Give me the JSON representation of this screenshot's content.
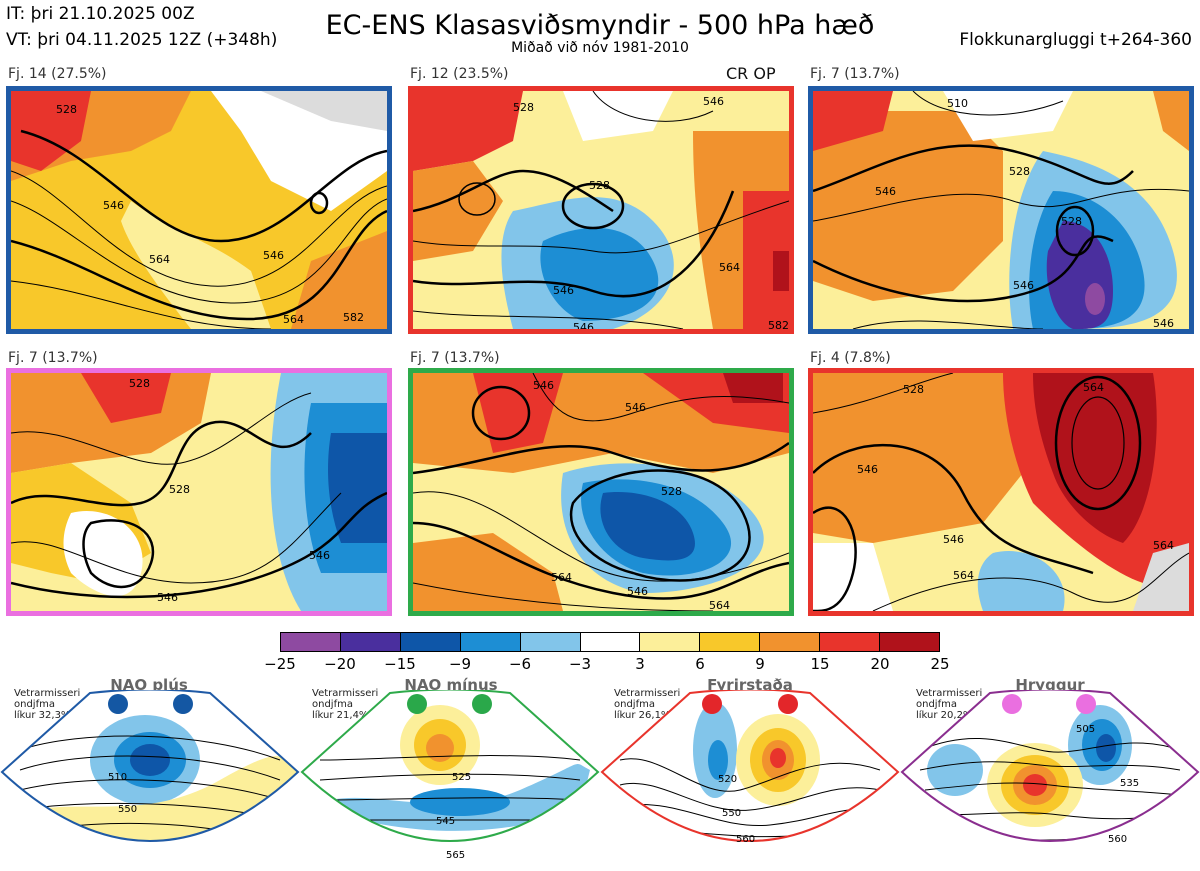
{
  "header": {
    "init_time": "IT: þri 21.10.2025 00Z",
    "valid_time": "VT: þri 04.11.2025 12Z  (+348h)",
    "title": "EC-ENS Klasasviðsmyndir - 500 hPa hæð",
    "subtitle": "Miðað við nóv 1981-2010",
    "window": "Flokkunargluggi t+264-360"
  },
  "clusters": [
    {
      "label": "Fj. 14 (27.5%)",
      "border_color": "#1f5aa6",
      "contour_labels": [
        "528",
        "546",
        "564",
        "546",
        "582",
        "564"
      ]
    },
    {
      "label": "Fj. 12 (23.5%)",
      "border_color": "#e8342c",
      "annotation": "CR OP",
      "contour_labels": [
        "528",
        "546",
        "528",
        "546",
        "564",
        "546",
        "582"
      ]
    },
    {
      "label": "Fj. 7 (13.7%)",
      "border_color": "#1f5aa6",
      "contour_labels": [
        "510",
        "528",
        "546",
        "528",
        "546",
        "546"
      ]
    },
    {
      "label": "Fj. 7 (13.7%)",
      "border_color": "#ea6fe0",
      "contour_labels": [
        "528",
        "528",
        "546",
        "546"
      ]
    },
    {
      "label": "Fj. 7 (13.7%)",
      "border_color": "#2eaa4a",
      "contour_labels": [
        "546",
        "546",
        "528",
        "564",
        "546",
        "564"
      ]
    },
    {
      "label": "Fj. 4 (7.8%)",
      "border_color": "#e8342c",
      "contour_labels": [
        "528",
        "546",
        "564",
        "546",
        "564",
        "564"
      ]
    }
  ],
  "colorbar": {
    "ticks": [
      "−25",
      "−20",
      "−15",
      "−9",
      "−6",
      "−3",
      "3",
      "6",
      "9",
      "15",
      "20",
      "25"
    ],
    "colors": [
      "#8e4aa1",
      "#4a2f9e",
      "#0e56a8",
      "#1d8ed4",
      "#82c5ea",
      "#ffffff",
      "#fcef9a",
      "#f8c82a",
      "#f1922e",
      "#e8342c",
      "#b0121b"
    ]
  },
  "regimes": [
    {
      "name": "NAO plús",
      "info": [
        "Vetrarmisseri",
        "ondjfma",
        "líkur 32,3%"
      ],
      "color": "#1f5aa6",
      "dot_color": "#1457a3",
      "contour_labels": [
        "510",
        "550"
      ]
    },
    {
      "name": "NAO mínus",
      "info": [
        "Vetrarmisseri",
        "ondjfma",
        "líkur 21,4%"
      ],
      "color": "#2eaa4a",
      "dot_color": "#2aa84a",
      "contour_labels": [
        "525",
        "545",
        "565"
      ]
    },
    {
      "name": "Fyrirstaða",
      "info": [
        "Vetrarmisseri",
        "ondjfma",
        "líkur 26,1%"
      ],
      "color": "#e8342c",
      "dot_color": "#e3262a",
      "contour_labels": [
        "520",
        "550",
        "560"
      ]
    },
    {
      "name": "Hryggur",
      "info": [
        "Vetrarmisseri",
        "ondjfma",
        "líkur 20,2%"
      ],
      "color": "#8a2e8f",
      "dot_color": "#ea6fe0",
      "contour_labels": [
        "505",
        "535",
        "560"
      ]
    }
  ]
}
